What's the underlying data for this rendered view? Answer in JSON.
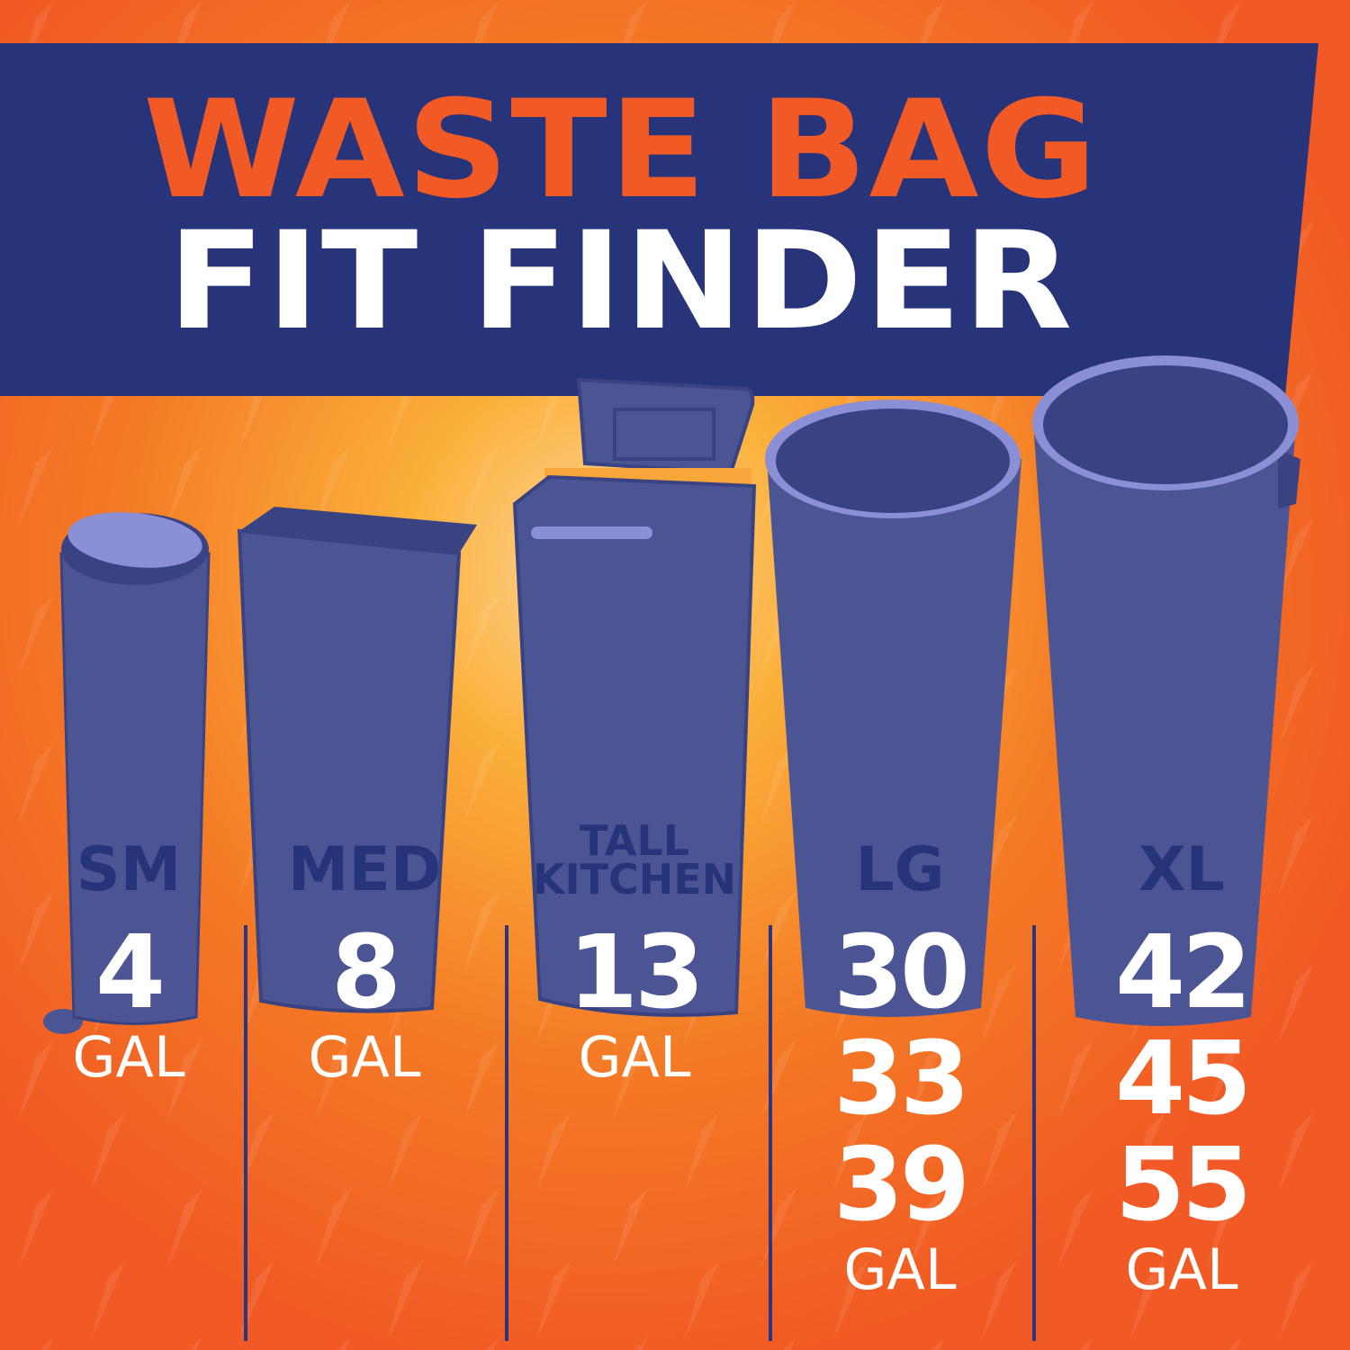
{
  "title": {
    "line1": "WASTE BAG",
    "line2": "FIT FINDER"
  },
  "colors": {
    "background_orange": "#f15a24",
    "glow_yellow": "#fbb03b",
    "banner_navy": "#28347a",
    "can_blue": "#4c5594",
    "can_rim": "#8a8fd6",
    "text_white": "#ffffff"
  },
  "sizes": [
    {
      "label": "SM",
      "gallons": [
        "4"
      ],
      "unit": "GAL",
      "icon": "step-trash-can-icon"
    },
    {
      "label": "MED",
      "gallons": [
        "8"
      ],
      "unit": "GAL",
      "icon": "wastebasket-icon"
    },
    {
      "label_line1": "TALL",
      "label_line2": "KITCHEN",
      "gallons": [
        "13"
      ],
      "unit": "GAL",
      "icon": "lidded-kitchen-can-icon"
    },
    {
      "label": "LG",
      "gallons": [
        "30",
        "33",
        "39"
      ],
      "unit": "GAL",
      "icon": "round-trash-can-icon"
    },
    {
      "label": "XL",
      "gallons": [
        "42",
        "45",
        "55"
      ],
      "unit": "GAL",
      "icon": "large-round-trash-can-icon"
    }
  ]
}
